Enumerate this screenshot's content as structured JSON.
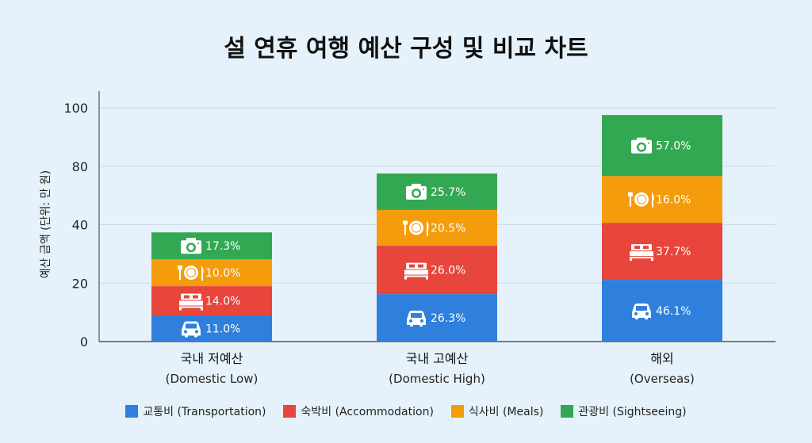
{
  "chart_data": {
    "type": "bar",
    "stacked": true,
    "title": "설 연휴 여행 예산 구성 및 비교 차트",
    "ylabel": "예산 금액 (단위: 만 원)",
    "xlabel": "",
    "ylim": [
      0,
      100
    ],
    "yticks": [
      "100",
      "80",
      "40",
      "20",
      "0"
    ],
    "grid": true,
    "legend_position": "bottom",
    "categories": [
      {
        "ko": "국내 저예산",
        "en": "(Domestic Low)"
      },
      {
        "ko": "국내 고예산",
        "en": "(Domestic High)"
      },
      {
        "ko": "해외",
        "en": "(Overseas)"
      }
    ],
    "series": [
      {
        "name": "교통비 (Transportation)",
        "color": "#2f7fdc",
        "icon": "car-icon",
        "values": [
          11.2,
          20.3,
          26.4
        ],
        "labels": [
          "11.0%",
          "26.3%",
          "46.1%"
        ]
      },
      {
        "name": "숙박비 (Accommodation)",
        "color": "#e8453c",
        "icon": "bed-icon",
        "values": [
          12.5,
          20.7,
          24.4
        ],
        "labels": [
          "14.0%",
          "26.0%",
          "37.7%"
        ]
      },
      {
        "name": "식사비 (Meals)",
        "color": "#f59c0c",
        "icon": "dining-icon",
        "values": [
          11.5,
          15.3,
          20.0
        ],
        "labels": [
          "10.0%",
          "20.5%",
          "16.0%"
        ]
      },
      {
        "name": "관광비 (Sightseeing)",
        "color": "#33a852",
        "icon": "camera-icon",
        "values": [
          11.5,
          15.6,
          26.1
        ],
        "labels": [
          "17.3%",
          "25.7%",
          "57.0%"
        ]
      }
    ]
  }
}
